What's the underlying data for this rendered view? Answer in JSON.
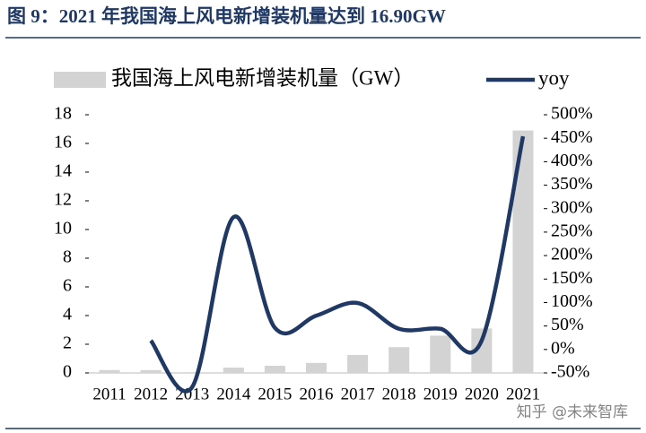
{
  "chart_data": {
    "type": "bar+line",
    "title": "图 9：2021 年我国海上风电新增装机量达到 16.90GW",
    "categories": [
      "2011",
      "2012",
      "2013",
      "2014",
      "2015",
      "2016",
      "2017",
      "2018",
      "2019",
      "2020",
      "2021"
    ],
    "series": [
      {
        "name": "我国海上风电新增装机量（GW）",
        "type": "bar",
        "color": "#d3d3d3",
        "values": [
          0.2,
          0.2,
          0.05,
          0.37,
          0.5,
          0.7,
          1.25,
          1.8,
          2.6,
          3.1,
          16.9
        ]
      },
      {
        "name": "yoy",
        "type": "line",
        "axis": "y2",
        "color": "#1f3864",
        "values": [
          null,
          19,
          -80,
          282,
          46,
          72,
          99,
          44,
          44,
          19,
          454
        ]
      }
    ],
    "ylim": [
      0,
      18
    ],
    "yticks": [
      0,
      2,
      4,
      6,
      8,
      10,
      12,
      14,
      16,
      18
    ],
    "y2lim": [
      -50,
      500
    ],
    "y2ticks": [
      {
        "value": -50,
        "label": "-50%"
      },
      {
        "value": 0,
        "label": "0%"
      },
      {
        "value": 50,
        "label": "50%"
      },
      {
        "value": 100,
        "label": "100%"
      },
      {
        "value": 150,
        "label": "150%"
      },
      {
        "value": 200,
        "label": "200%"
      },
      {
        "value": 250,
        "label": "250%"
      },
      {
        "value": 300,
        "label": "300%"
      },
      {
        "value": 350,
        "label": "350%"
      },
      {
        "value": 400,
        "label": "400%"
      },
      {
        "value": 450,
        "label": "450%"
      },
      {
        "value": 500,
        "label": "500%"
      }
    ],
    "watermark": "知乎 @未来智库"
  }
}
